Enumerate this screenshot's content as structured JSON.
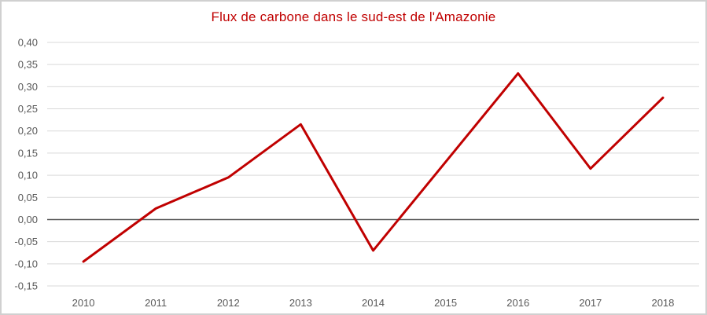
{
  "chart_data": {
    "type": "line",
    "title": "Flux de carbone dans le sud-est de l'Amazonie",
    "categories": [
      "2010",
      "2011",
      "2012",
      "2013",
      "2014",
      "2015",
      "2016",
      "2017",
      "2018"
    ],
    "series": [
      {
        "name": "Flux de carbone",
        "values": [
          -0.095,
          0.025,
          0.095,
          0.215,
          -0.07,
          0.13,
          0.33,
          0.115,
          0.275
        ]
      }
    ],
    "xlabel": "",
    "ylabel": "",
    "ylim": [
      -0.15,
      0.4
    ],
    "ytick_step": 0.05,
    "ytick_labels": [
      "0,40",
      "0,35",
      "0,30",
      "0,25",
      "0,20",
      "0,15",
      "0,10",
      "0,05",
      "0,00",
      "-0,05",
      "-0,10",
      "-0,15"
    ],
    "decimal_separator": ",",
    "grid": true,
    "legend_position": "none",
    "colors": {
      "line": "#c00000",
      "title": "#c00000",
      "gridline": "#d9d9d9",
      "zero_axis": "#595959",
      "tick_label": "#595959",
      "border": "#d0d0d0",
      "background": "#ffffff"
    }
  }
}
